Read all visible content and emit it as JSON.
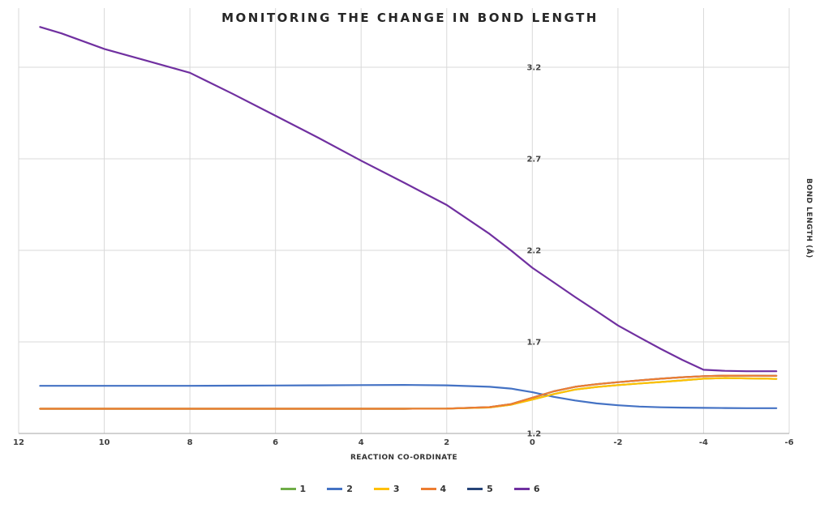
{
  "chart_data": {
    "type": "line",
    "title": "MONITORING THE CHANGE IN BOND LENGTH",
    "xlabel": "REACTION CO-ORDINATE",
    "ylabel": "BOND LENGTH (Å)",
    "x_ticks": [
      12,
      10,
      8,
      6,
      4,
      2,
      0,
      -2,
      -4,
      -6
    ],
    "y_ticks": [
      1.2,
      1.7,
      2.2,
      2.7,
      3.2
    ],
    "x_range": [
      12,
      -6
    ],
    "x_axis_reversed": true,
    "y_range": [
      1.2,
      3.52
    ],
    "grid": true,
    "grid_color": "#D9D9D9",
    "axis_line_color": "#A6A6A6",
    "legend_position": "bottom",
    "x": [
      11.5,
      11,
      10,
      9,
      8,
      7,
      6,
      5,
      4,
      3,
      2,
      1,
      0.5,
      0,
      -0.5,
      -1,
      -1.5,
      -2,
      -2.5,
      -3,
      -3.5,
      -4,
      -4.5,
      -5,
      -5.5,
      -5.7
    ],
    "series": [
      {
        "name": "1",
        "color": "#70AD47",
        "values": [
          1.335,
          1.335,
          1.335,
          1.335,
          1.335,
          1.335,
          1.335,
          1.335,
          1.335,
          1.335,
          1.336,
          1.342,
          1.357,
          1.385,
          1.415,
          1.44,
          1.454,
          1.464,
          1.473,
          1.481,
          1.49,
          1.499,
          1.503,
          1.501,
          1.499,
          1.498
        ]
      },
      {
        "name": "2",
        "color": "#4472C4",
        "values": [
          1.46,
          1.46,
          1.46,
          1.46,
          1.46,
          1.461,
          1.462,
          1.463,
          1.464,
          1.465,
          1.463,
          1.455,
          1.445,
          1.425,
          1.4,
          1.38,
          1.364,
          1.354,
          1.347,
          1.343,
          1.341,
          1.34,
          1.339,
          1.338,
          1.338,
          1.338
        ]
      },
      {
        "name": "3",
        "color": "#FFC000",
        "values": [
          1.335,
          1.335,
          1.335,
          1.335,
          1.335,
          1.335,
          1.335,
          1.335,
          1.335,
          1.335,
          1.336,
          1.342,
          1.357,
          1.385,
          1.415,
          1.44,
          1.454,
          1.464,
          1.473,
          1.481,
          1.49,
          1.499,
          1.503,
          1.501,
          1.499,
          1.498
        ]
      },
      {
        "name": "4",
        "color": "#ED7D31",
        "values": [
          1.335,
          1.335,
          1.335,
          1.335,
          1.335,
          1.335,
          1.335,
          1.335,
          1.335,
          1.335,
          1.336,
          1.344,
          1.36,
          1.395,
          1.43,
          1.455,
          1.469,
          1.48,
          1.49,
          1.499,
          1.507,
          1.513,
          1.516,
          1.516,
          1.515,
          1.515
        ]
      },
      {
        "name": "5",
        "color": "#264478",
        "values": [
          1.335,
          1.335,
          1.335,
          1.335,
          1.335,
          1.335,
          1.335,
          1.335,
          1.335,
          1.335,
          1.336,
          1.344,
          1.36,
          1.395,
          1.43,
          1.455,
          1.469,
          1.48,
          1.49,
          1.499,
          1.507,
          1.513,
          1.516,
          1.516,
          1.515,
          1.515
        ]
      },
      {
        "name": "6",
        "color": "#7030A0",
        "values": [
          3.42,
          3.385,
          3.3,
          3.235,
          3.17,
          3.055,
          2.935,
          2.815,
          2.69,
          2.57,
          2.448,
          2.29,
          2.2,
          2.105,
          2.025,
          1.945,
          1.868,
          1.79,
          1.725,
          1.662,
          1.602,
          1.548,
          1.542,
          1.54,
          1.54,
          1.54
        ]
      }
    ],
    "draw_order": [
      0,
      4,
      1,
      2,
      3,
      5
    ]
  }
}
